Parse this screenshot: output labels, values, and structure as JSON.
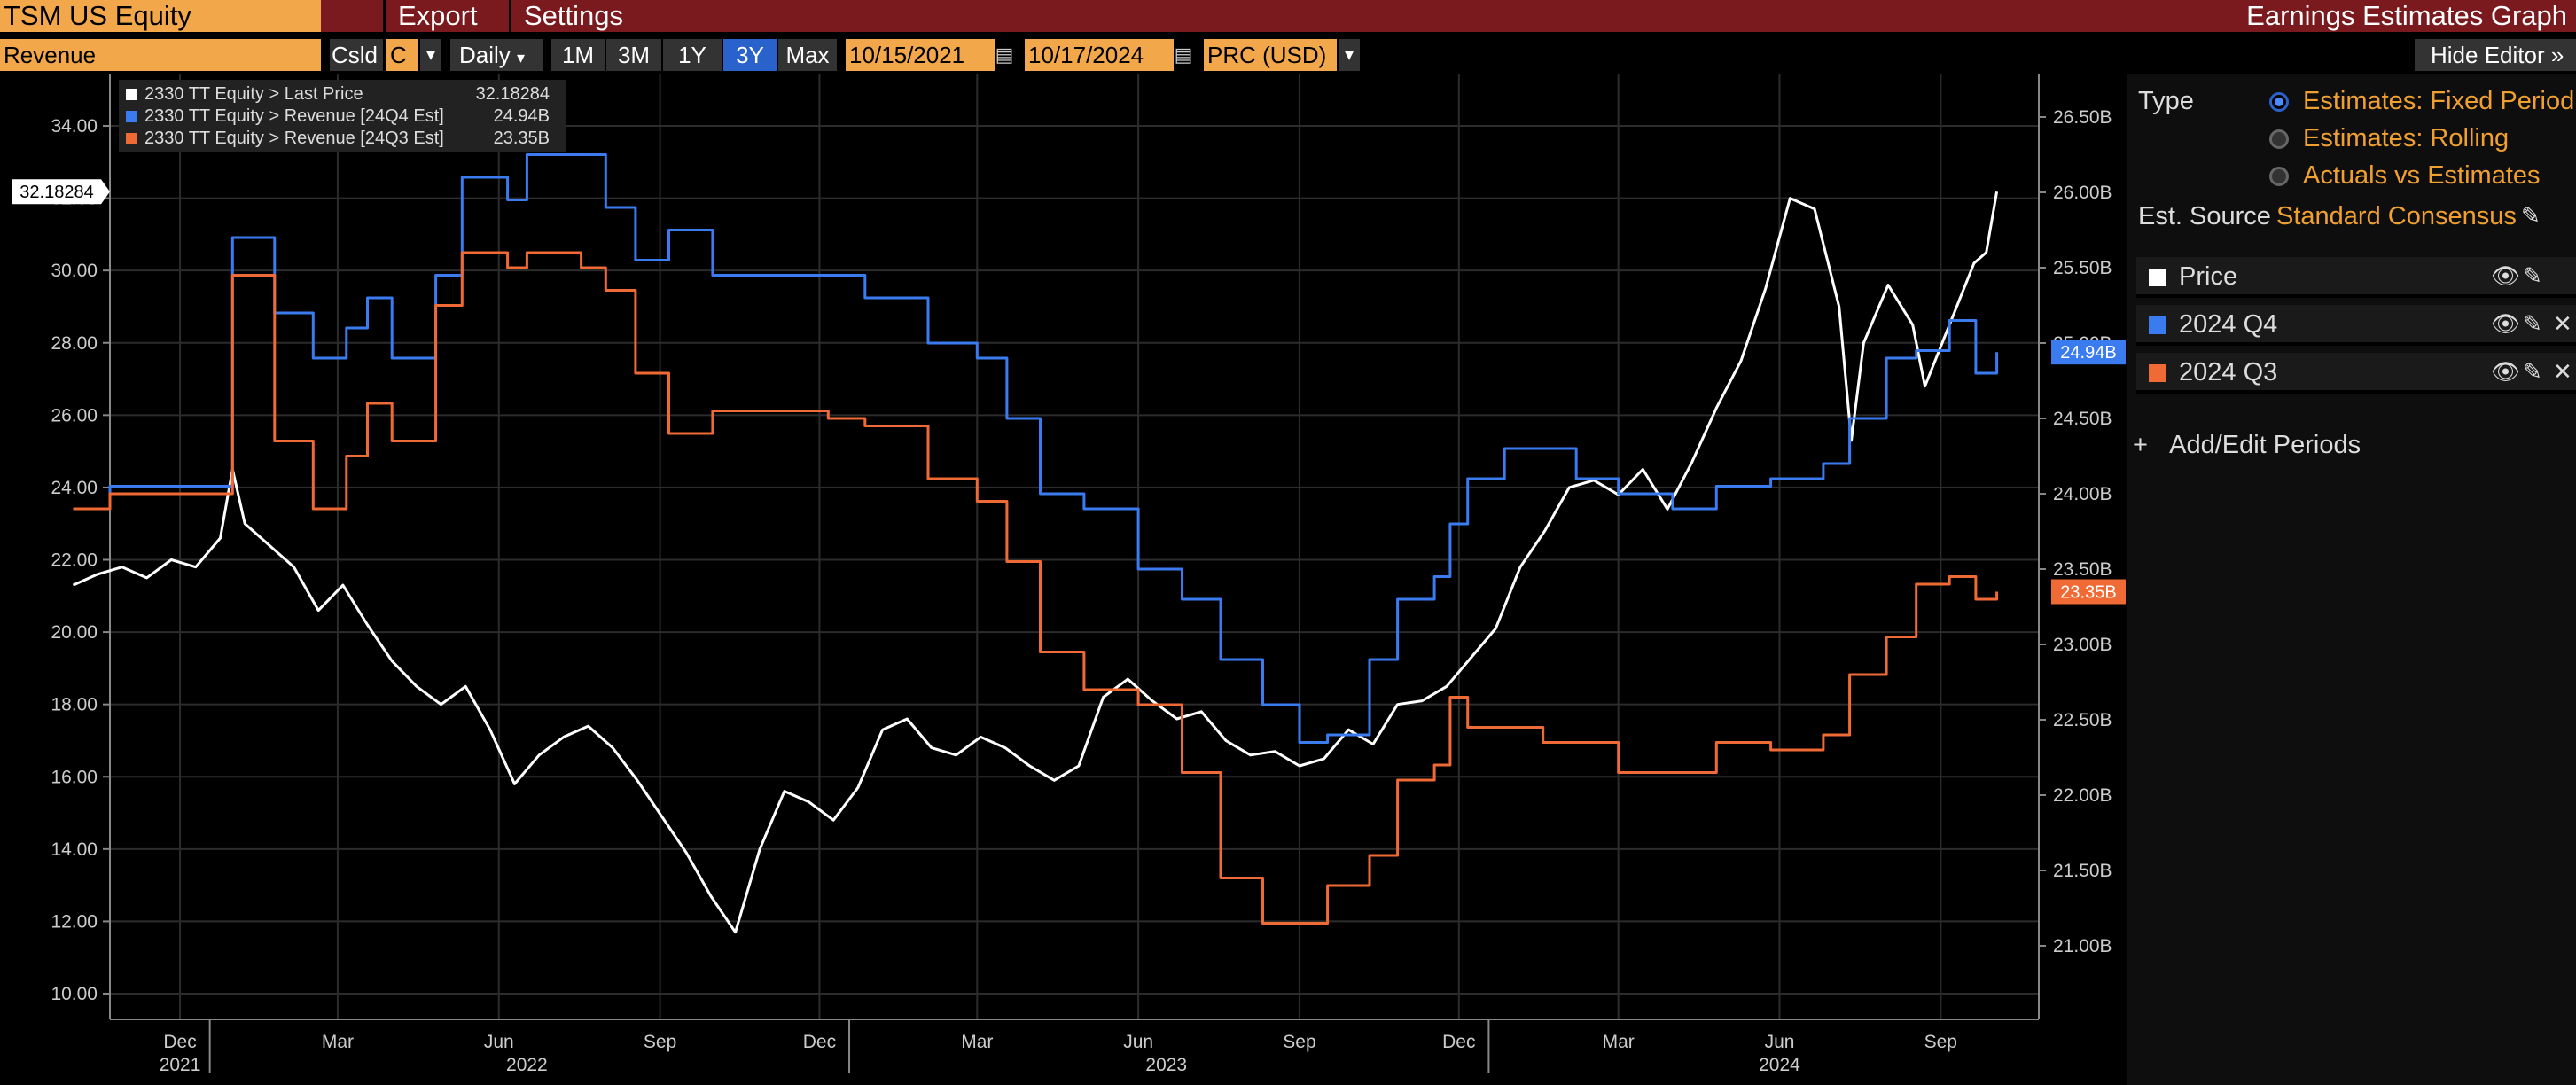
{
  "header": {
    "ticker": "TSM US Equity",
    "menu": [
      "Export",
      "Settings"
    ],
    "title": "Earnings Estimates Graph"
  },
  "toolbar": {
    "field": "Revenue",
    "csld_label": "Csld",
    "csld_value": "C",
    "frequency": "Daily",
    "ranges": [
      "1M",
      "3M",
      "1Y",
      "3Y",
      "Max"
    ],
    "active_range": "3Y",
    "start_date": "10/15/2021",
    "end_date": "10/17/2024",
    "currency": "PRC (USD)",
    "hide_editor": "Hide Editor"
  },
  "colors": {
    "price": "#ffffff",
    "q4": "#3a7bf0",
    "q3": "#f06a35",
    "accent": "#f0a030"
  },
  "legend": [
    {
      "label": "2330 TT Equity > Last Price",
      "value": "32.18284",
      "color": "#ffffff"
    },
    {
      "label": "2330 TT Equity > Revenue [24Q4 Est]",
      "value": "24.94B",
      "color": "#3a7bf0"
    },
    {
      "label": "2330 TT Equity > Revenue [24Q3 Est]",
      "value": "23.35B",
      "color": "#f06a35"
    }
  ],
  "badges": {
    "price": "32.18284",
    "q4": "24.94B",
    "q3": "23.35B"
  },
  "editor": {
    "type_label": "Type",
    "type_options": [
      "Estimates: Fixed Period",
      "Estimates: Rolling",
      "Actuals vs Estimates"
    ],
    "selected_type": "Estimates: Fixed Period",
    "source_label": "Est. Source",
    "source_value": "Standard Consensus",
    "series": [
      {
        "name": "Price",
        "color": "#ffffff"
      },
      {
        "name": "2024 Q4",
        "color": "#3a7bf0"
      },
      {
        "name": "2024 Q3",
        "color": "#f06a35"
      }
    ],
    "add_label": "Add/Edit Periods"
  },
  "chart_data": {
    "type": "line",
    "x_axis": {
      "month_ticks": [
        "Dec",
        "Mar",
        "Jun",
        "Sep",
        "Dec",
        "Mar",
        "Jun",
        "Sep",
        "Dec",
        "Mar",
        "Jun",
        "Sep"
      ],
      "year_labels": [
        "2021",
        "2022",
        "2023",
        "2024"
      ]
    },
    "left_axis": {
      "ticks": [
        "34.00",
        "32.00",
        "30.00",
        "28.00",
        "26.00",
        "24.00",
        "22.00",
        "20.00",
        "18.00",
        "16.00",
        "14.00",
        "12.00",
        "10.00"
      ],
      "range": [
        10,
        34
      ]
    },
    "right_axis": {
      "ticks": [
        "26.50B",
        "26.00B",
        "25.50B",
        "25.00B",
        "24.50B",
        "24.00B",
        "23.50B",
        "23.00B",
        "22.50B",
        "22.00B",
        "21.50B",
        "21.00B"
      ],
      "range": [
        21.0,
        26.5
      ],
      "unit": "B"
    },
    "grid": true,
    "series": [
      {
        "name": "2330 TT Equity > Last Price",
        "axis": "left",
        "points": [
          [
            "2021-10-15",
            21.3
          ],
          [
            "2021-10-29",
            21.6
          ],
          [
            "2021-11-12",
            21.8
          ],
          [
            "2021-11-26",
            21.5
          ],
          [
            "2021-12-10",
            22.0
          ],
          [
            "2021-12-24",
            21.8
          ],
          [
            "2022-01-07",
            22.6
          ],
          [
            "2022-01-14",
            24.5
          ],
          [
            "2022-01-21",
            23.0
          ],
          [
            "2022-02-04",
            22.4
          ],
          [
            "2022-02-18",
            21.8
          ],
          [
            "2022-03-04",
            20.6
          ],
          [
            "2022-03-18",
            21.3
          ],
          [
            "2022-04-01",
            20.2
          ],
          [
            "2022-04-15",
            19.2
          ],
          [
            "2022-04-29",
            18.5
          ],
          [
            "2022-05-13",
            18.0
          ],
          [
            "2022-05-27",
            18.5
          ],
          [
            "2022-06-10",
            17.3
          ],
          [
            "2022-06-24",
            15.8
          ],
          [
            "2022-07-08",
            16.6
          ],
          [
            "2022-07-22",
            17.1
          ],
          [
            "2022-08-05",
            17.4
          ],
          [
            "2022-08-19",
            16.8
          ],
          [
            "2022-09-02",
            15.9
          ],
          [
            "2022-09-16",
            14.9
          ],
          [
            "2022-09-30",
            13.9
          ],
          [
            "2022-10-14",
            12.7
          ],
          [
            "2022-10-28",
            11.7
          ],
          [
            "2022-11-11",
            14.0
          ],
          [
            "2022-11-25",
            15.6
          ],
          [
            "2022-12-09",
            15.3
          ],
          [
            "2022-12-23",
            14.8
          ],
          [
            "2023-01-06",
            15.7
          ],
          [
            "2023-01-20",
            17.3
          ],
          [
            "2023-02-03",
            17.6
          ],
          [
            "2023-02-17",
            16.8
          ],
          [
            "2023-03-03",
            16.6
          ],
          [
            "2023-03-17",
            17.1
          ],
          [
            "2023-03-31",
            16.8
          ],
          [
            "2023-04-14",
            16.3
          ],
          [
            "2023-04-28",
            15.9
          ],
          [
            "2023-05-12",
            16.3
          ],
          [
            "2023-05-26",
            18.2
          ],
          [
            "2023-06-09",
            18.7
          ],
          [
            "2023-06-23",
            18.1
          ],
          [
            "2023-07-07",
            17.6
          ],
          [
            "2023-07-21",
            17.8
          ],
          [
            "2023-08-04",
            17.0
          ],
          [
            "2023-08-18",
            16.6
          ],
          [
            "2023-09-01",
            16.7
          ],
          [
            "2023-09-15",
            16.3
          ],
          [
            "2023-09-29",
            16.5
          ],
          [
            "2023-10-13",
            17.3
          ],
          [
            "2023-10-27",
            16.9
          ],
          [
            "2023-11-10",
            18.0
          ],
          [
            "2023-11-24",
            18.1
          ],
          [
            "2023-12-08",
            18.5
          ],
          [
            "2023-12-22",
            19.3
          ],
          [
            "2024-01-05",
            20.1
          ],
          [
            "2024-01-19",
            21.8
          ],
          [
            "2024-02-02",
            22.8
          ],
          [
            "2024-02-16",
            24.0
          ],
          [
            "2024-03-01",
            24.2
          ],
          [
            "2024-03-15",
            23.8
          ],
          [
            "2024-03-29",
            24.5
          ],
          [
            "2024-04-12",
            23.4
          ],
          [
            "2024-04-26",
            24.7
          ],
          [
            "2024-05-10",
            26.2
          ],
          [
            "2024-05-24",
            27.5
          ],
          [
            "2024-06-07",
            29.5
          ],
          [
            "2024-06-21",
            32.0
          ],
          [
            "2024-07-05",
            31.7
          ],
          [
            "2024-07-19",
            29.0
          ],
          [
            "2024-07-26",
            25.3
          ],
          [
            "2024-08-02",
            28.0
          ],
          [
            "2024-08-16",
            29.6
          ],
          [
            "2024-08-30",
            28.5
          ],
          [
            "2024-09-06",
            26.8
          ],
          [
            "2024-09-20",
            28.5
          ],
          [
            "2024-10-04",
            30.2
          ],
          [
            "2024-10-11",
            30.5
          ],
          [
            "2024-10-17",
            32.18
          ]
        ]
      },
      {
        "name": "2330 TT Equity > Revenue [24Q4 Est]",
        "axis": "right",
        "step": true,
        "points": [
          [
            "2021-10-15",
            23.9
          ],
          [
            "2021-11-05",
            24.05
          ],
          [
            "2022-01-03",
            24.05
          ],
          [
            "2022-01-14",
            25.7
          ],
          [
            "2022-02-07",
            25.2
          ],
          [
            "2022-03-01",
            24.9
          ],
          [
            "2022-03-20",
            25.1
          ],
          [
            "2022-04-01",
            25.3
          ],
          [
            "2022-04-15",
            24.9
          ],
          [
            "2022-05-10",
            25.45
          ],
          [
            "2022-05-25",
            26.1
          ],
          [
            "2022-06-20",
            25.95
          ],
          [
            "2022-07-01",
            26.25
          ],
          [
            "2022-08-01",
            26.25
          ],
          [
            "2022-08-15",
            25.9
          ],
          [
            "2022-09-01",
            25.55
          ],
          [
            "2022-09-20",
            25.75
          ],
          [
            "2022-10-15",
            25.45
          ],
          [
            "2022-11-20",
            25.45
          ],
          [
            "2022-12-20",
            25.45
          ],
          [
            "2023-01-10",
            25.3
          ],
          [
            "2023-02-15",
            25.0
          ],
          [
            "2023-03-15",
            24.9
          ],
          [
            "2023-04-01",
            24.5
          ],
          [
            "2023-04-20",
            24.0
          ],
          [
            "2023-05-15",
            23.9
          ],
          [
            "2023-06-15",
            23.5
          ],
          [
            "2023-07-10",
            23.3
          ],
          [
            "2023-08-01",
            22.9
          ],
          [
            "2023-08-25",
            22.6
          ],
          [
            "2023-09-15",
            22.35
          ],
          [
            "2023-10-01",
            22.4
          ],
          [
            "2023-10-25",
            22.9
          ],
          [
            "2023-11-10",
            23.3
          ],
          [
            "2023-12-01",
            23.45
          ],
          [
            "2023-12-10",
            23.8
          ],
          [
            "2023-12-20",
            24.1
          ],
          [
            "2024-01-10",
            24.3
          ],
          [
            "2024-02-01",
            24.3
          ],
          [
            "2024-02-20",
            24.1
          ],
          [
            "2024-03-15",
            24.0
          ],
          [
            "2024-04-15",
            23.9
          ],
          [
            "2024-05-10",
            24.05
          ],
          [
            "2024-06-10",
            24.1
          ],
          [
            "2024-07-10",
            24.2
          ],
          [
            "2024-07-25",
            24.5
          ],
          [
            "2024-08-15",
            24.9
          ],
          [
            "2024-09-01",
            24.95
          ],
          [
            "2024-09-20",
            25.15
          ],
          [
            "2024-10-05",
            24.8
          ],
          [
            "2024-10-17",
            24.94
          ]
        ]
      },
      {
        "name": "2330 TT Equity > Revenue [24Q3 Est]",
        "axis": "right",
        "step": true,
        "points": [
          [
            "2021-10-15",
            23.9
          ],
          [
            "2021-11-05",
            24.0
          ],
          [
            "2022-01-03",
            24.0
          ],
          [
            "2022-01-14",
            25.45
          ],
          [
            "2022-02-07",
            24.35
          ],
          [
            "2022-03-01",
            23.9
          ],
          [
            "2022-03-20",
            24.25
          ],
          [
            "2022-04-01",
            24.6
          ],
          [
            "2022-04-15",
            24.35
          ],
          [
            "2022-05-10",
            25.25
          ],
          [
            "2022-05-25",
            25.6
          ],
          [
            "2022-06-20",
            25.5
          ],
          [
            "2022-07-01",
            25.6
          ],
          [
            "2022-08-01",
            25.5
          ],
          [
            "2022-08-15",
            25.35
          ],
          [
            "2022-09-01",
            24.8
          ],
          [
            "2022-09-20",
            24.4
          ],
          [
            "2022-10-15",
            24.55
          ],
          [
            "2022-11-20",
            24.55
          ],
          [
            "2022-12-20",
            24.5
          ],
          [
            "2023-01-10",
            24.45
          ],
          [
            "2023-02-15",
            24.1
          ],
          [
            "2023-03-15",
            23.95
          ],
          [
            "2023-04-01",
            23.55
          ],
          [
            "2023-04-20",
            22.95
          ],
          [
            "2023-05-15",
            22.7
          ],
          [
            "2023-06-15",
            22.6
          ],
          [
            "2023-07-10",
            22.15
          ],
          [
            "2023-08-01",
            21.45
          ],
          [
            "2023-08-25",
            21.15
          ],
          [
            "2023-09-15",
            21.15
          ],
          [
            "2023-10-01",
            21.4
          ],
          [
            "2023-10-25",
            21.6
          ],
          [
            "2023-11-10",
            22.1
          ],
          [
            "2023-12-01",
            22.2
          ],
          [
            "2023-12-10",
            22.65
          ],
          [
            "2023-12-20",
            22.45
          ],
          [
            "2024-01-10",
            22.45
          ],
          [
            "2024-02-01",
            22.35
          ],
          [
            "2024-02-20",
            22.35
          ],
          [
            "2024-03-15",
            22.15
          ],
          [
            "2024-04-15",
            22.15
          ],
          [
            "2024-05-10",
            22.35
          ],
          [
            "2024-06-10",
            22.3
          ],
          [
            "2024-07-10",
            22.4
          ],
          [
            "2024-07-25",
            22.8
          ],
          [
            "2024-08-15",
            23.05
          ],
          [
            "2024-09-01",
            23.4
          ],
          [
            "2024-09-20",
            23.45
          ],
          [
            "2024-10-05",
            23.3
          ],
          [
            "2024-10-17",
            23.35
          ]
        ]
      }
    ]
  }
}
